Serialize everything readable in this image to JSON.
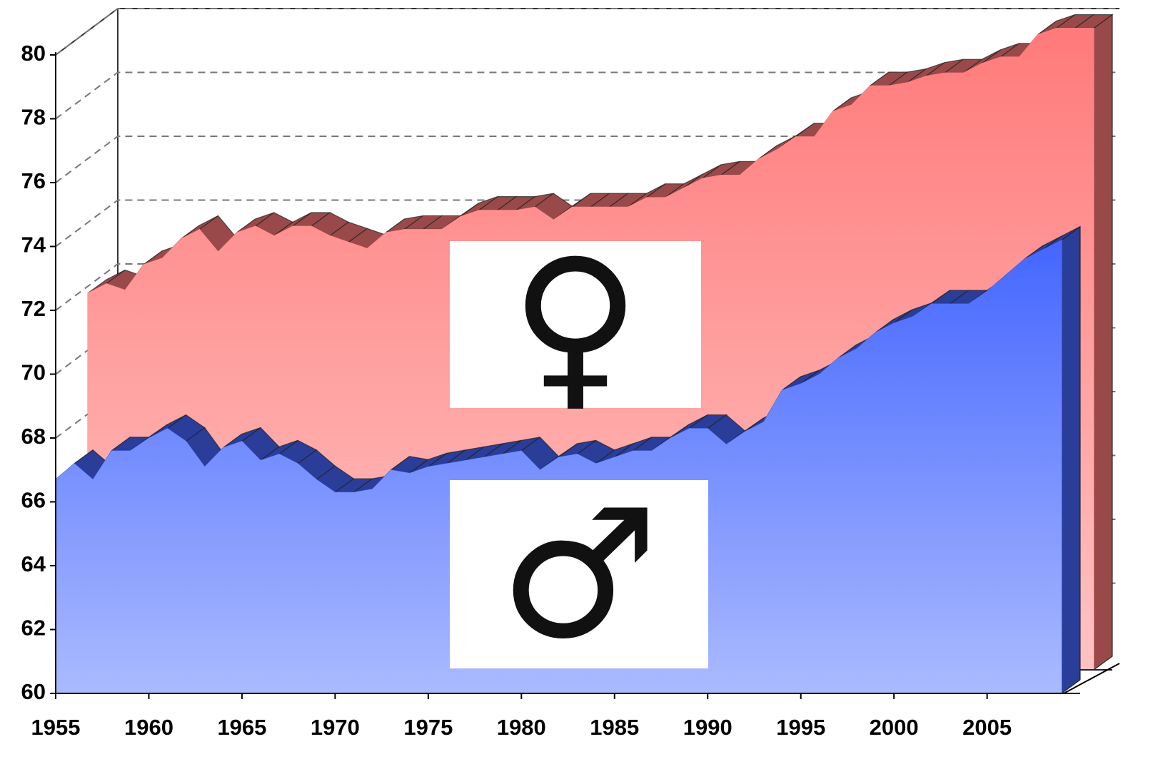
{
  "chart_data": {
    "type": "area3d",
    "x": [
      1955,
      1956,
      1957,
      1958,
      1959,
      1960,
      1961,
      1962,
      1963,
      1964,
      1965,
      1966,
      1967,
      1968,
      1969,
      1970,
      1971,
      1972,
      1973,
      1974,
      1975,
      1976,
      1977,
      1978,
      1979,
      1980,
      1981,
      1982,
      1983,
      1984,
      1985,
      1986,
      1987,
      1988,
      1989,
      1990,
      1991,
      1992,
      1993,
      1994,
      1995,
      1996,
      1997,
      1998,
      1999,
      2000,
      2001,
      2002,
      2003,
      2004,
      2005,
      2006,
      2007,
      2008,
      2009
    ],
    "series": [
      {
        "name": "♀",
        "color": "#ff7a7a",
        "values": [
          71.8,
          72.1,
          71.9,
          72.7,
          72.9,
          73.5,
          73.8,
          73.1,
          73.7,
          73.9,
          73.6,
          73.9,
          73.9,
          73.6,
          73.4,
          73.2,
          73.7,
          73.8,
          73.8,
          73.8,
          74.2,
          74.4,
          74.4,
          74.4,
          74.5,
          74.1,
          74.5,
          74.5,
          74.5,
          74.5,
          74.8,
          74.8,
          75.1,
          75.4,
          75.5,
          75.5,
          76.0,
          76.3,
          76.7,
          76.7,
          77.5,
          77.7,
          78.3,
          78.3,
          78.4,
          78.6,
          78.7,
          78.7,
          79.0,
          79.2,
          79.2,
          79.9,
          80.1,
          80.1,
          80.1
        ]
      },
      {
        "name": "♂",
        "color": "#4466ff",
        "values": [
          66.7,
          67.2,
          66.7,
          67.6,
          67.6,
          68.0,
          68.3,
          67.9,
          67.1,
          67.7,
          67.9,
          67.3,
          67.5,
          67.2,
          66.7,
          66.3,
          66.3,
          66.4,
          67.0,
          66.9,
          67.1,
          67.2,
          67.3,
          67.4,
          67.5,
          67.6,
          67.0,
          67.4,
          67.5,
          67.2,
          67.4,
          67.6,
          67.6,
          68.0,
          68.3,
          68.3,
          67.8,
          68.2,
          68.5,
          69.5,
          69.7,
          70.0,
          70.5,
          70.8,
          71.3,
          71.6,
          71.8,
          72.2,
          72.2,
          72.2,
          72.6,
          73.1,
          73.6,
          73.9,
          74.2
        ]
      }
    ],
    "xlim": [
      1955,
      2009
    ],
    "xticks": [
      1955,
      1960,
      1965,
      1970,
      1975,
      1980,
      1985,
      1990,
      1995,
      2000,
      2005
    ],
    "ylim": [
      60,
      80
    ],
    "yticks": [
      60,
      62,
      64,
      66,
      68,
      70,
      72,
      74,
      76,
      78,
      80
    ],
    "grid": true
  }
}
